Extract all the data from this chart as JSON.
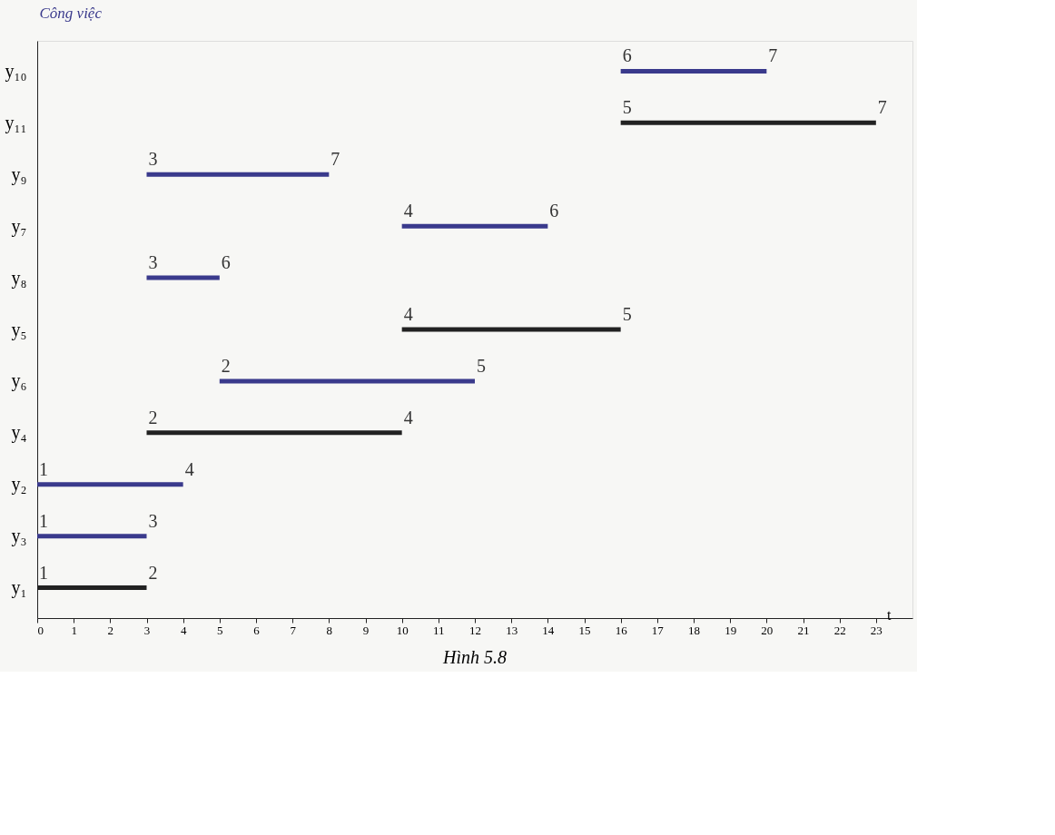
{
  "chart_data": {
    "type": "bar",
    "orientation": "horizontal",
    "title": "Hình 5.8",
    "xlabel": "t",
    "ylabel": "Công việc",
    "categories": [
      "y₁₀",
      "y₁₁",
      "y₉",
      "y₇",
      "y₈",
      "y₅",
      "y₆",
      "y₄",
      "y₂",
      "y₃",
      "y₁"
    ],
    "base": [
      16,
      16,
      3,
      10,
      3,
      10,
      5,
      3,
      0,
      0,
      0
    ],
    "values": [
      4,
      7,
      5,
      4,
      2,
      6,
      7,
      7,
      4,
      3,
      3
    ],
    "colors": [
      "#3a3a8c",
      "#222222",
      "#3a3a8c",
      "#3a3a8c",
      "#3a3a8c",
      "#222222",
      "#3a3a8c",
      "#222222",
      "#3a3a8c",
      "#3a3a8c",
      "#222222"
    ],
    "xlim": [
      0,
      24
    ],
    "xticks": [
      0,
      1,
      2,
      3,
      4,
      5,
      6,
      7,
      8,
      9,
      10,
      11,
      12,
      13,
      14,
      15,
      16,
      17,
      18,
      19,
      20,
      21,
      22,
      23
    ],
    "grid": false,
    "annotations": [
      {
        "text": "6",
        "x": 16,
        "y": "y₁₀"
      },
      {
        "text": "7",
        "x": 20,
        "y": "y₁₀"
      },
      {
        "text": "5",
        "x": 16,
        "y": "y₁₁"
      },
      {
        "text": "7",
        "x": 23,
        "y": "y₁₁"
      },
      {
        "text": "3",
        "x": 3,
        "y": "y₉"
      },
      {
        "text": "7",
        "x": 8,
        "y": "y₉"
      },
      {
        "text": "4",
        "x": 10,
        "y": "y₇"
      },
      {
        "text": "6",
        "x": 14,
        "y": "y₇"
      },
      {
        "text": "3",
        "x": 3,
        "y": "y₈"
      },
      {
        "text": "6",
        "x": 5,
        "y": "y₈"
      },
      {
        "text": "4",
        "x": 10,
        "y": "y₅"
      },
      {
        "text": "5",
        "x": 16,
        "y": "y₅"
      },
      {
        "text": "2",
        "x": 5,
        "y": "y₆"
      },
      {
        "text": "5",
        "x": 12,
        "y": "y₆"
      },
      {
        "text": "2",
        "x": 3,
        "y": "y₄"
      },
      {
        "text": "4",
        "x": 10,
        "y": "y₄"
      },
      {
        "text": "1",
        "x": 0,
        "y": "y₂"
      },
      {
        "text": "4",
        "x": 4,
        "y": "y₂"
      },
      {
        "text": "1",
        "x": 0,
        "y": "y₃"
      },
      {
        "text": "3",
        "x": 3,
        "y": "y₃"
      },
      {
        "text": "1",
        "x": 0,
        "y": "y₁"
      },
      {
        "text": "2",
        "x": 3,
        "y": "y₁"
      }
    ]
  }
}
